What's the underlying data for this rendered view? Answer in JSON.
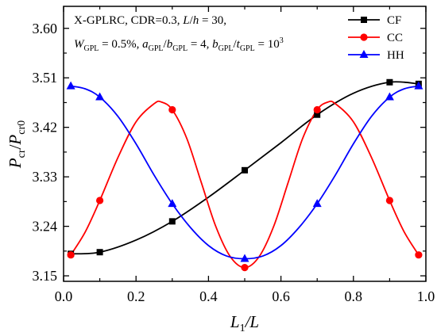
{
  "chart_data": {
    "type": "line",
    "xlabel": {
      "main": "L",
      "sub": "1",
      "rest": "/L"
    },
    "ylabel": {
      "p1": "P",
      "s1": "cr",
      "slash": "/",
      "p2": "P",
      "s2": "cr0"
    },
    "xlim": [
      0.0,
      1.0
    ],
    "ylim": [
      3.14,
      3.64
    ],
    "xticks": [
      "0.0",
      "0.2",
      "0.4",
      "0.6",
      "0.8",
      "1.0"
    ],
    "xtick_values": [
      0.0,
      0.2,
      0.4,
      0.6,
      0.8,
      1.0
    ],
    "yticks": [
      "3.15",
      "3.24",
      "3.33",
      "3.42",
      "3.51",
      "3.60"
    ],
    "ytick_values": [
      3.15,
      3.24,
      3.33,
      3.42,
      3.51,
      3.6
    ],
    "annotation": {
      "line1": {
        "a": "X-GPLRC, CDR=0.3, ",
        "b": "L",
        "c": "/",
        "d": "h",
        "e": " = 30,"
      },
      "line2": {
        "w": "W",
        "wsub": "GPL",
        "wval": " = 0.5%, ",
        "a": "a",
        "asub": "GPL",
        "slash1": "/",
        "b": "b",
        "bsub": "GPL",
        "aval": " = 4, ",
        "b2": "b",
        "b2sub": "GPL",
        "slash2": "/",
        "t": "t",
        "tsub": "GPL",
        "tval": " = 10",
        "tsup": "3"
      }
    },
    "legend_position": "top-right",
    "series": [
      {
        "name": "CF",
        "color": "#000000",
        "marker": "square",
        "points": [
          [
            0.02,
            3.19
          ],
          [
            0.1,
            3.193
          ],
          [
            0.3,
            3.249
          ],
          [
            0.5,
            3.342
          ],
          [
            0.7,
            3.443
          ],
          [
            0.9,
            3.502
          ],
          [
            0.98,
            3.499
          ]
        ],
        "curve": [
          [
            0.02,
            3.19
          ],
          [
            0.1,
            3.193
          ],
          [
            0.2,
            3.215
          ],
          [
            0.3,
            3.249
          ],
          [
            0.4,
            3.293
          ],
          [
            0.5,
            3.342
          ],
          [
            0.6,
            3.392
          ],
          [
            0.7,
            3.443
          ],
          [
            0.8,
            3.482
          ],
          [
            0.9,
            3.502
          ],
          [
            0.98,
            3.499
          ]
        ]
      },
      {
        "name": "CC",
        "color": "#ff0000",
        "marker": "circle",
        "points": [
          [
            0.02,
            3.188
          ],
          [
            0.1,
            3.287
          ],
          [
            0.3,
            3.452
          ],
          [
            0.5,
            3.165
          ],
          [
            0.7,
            3.452
          ],
          [
            0.9,
            3.287
          ],
          [
            0.98,
            3.188
          ]
        ],
        "curve": [
          [
            0.02,
            3.188
          ],
          [
            0.06,
            3.23
          ],
          [
            0.1,
            3.287
          ],
          [
            0.15,
            3.365
          ],
          [
            0.2,
            3.43
          ],
          [
            0.25,
            3.463
          ],
          [
            0.27,
            3.466
          ],
          [
            0.3,
            3.452
          ],
          [
            0.34,
            3.4
          ],
          [
            0.38,
            3.32
          ],
          [
            0.42,
            3.24
          ],
          [
            0.46,
            3.185
          ],
          [
            0.5,
            3.165
          ],
          [
            0.54,
            3.185
          ],
          [
            0.58,
            3.24
          ],
          [
            0.62,
            3.32
          ],
          [
            0.66,
            3.4
          ],
          [
            0.7,
            3.452
          ],
          [
            0.73,
            3.466
          ],
          [
            0.75,
            3.463
          ],
          [
            0.8,
            3.43
          ],
          [
            0.85,
            3.365
          ],
          [
            0.9,
            3.287
          ],
          [
            0.94,
            3.23
          ],
          [
            0.98,
            3.188
          ]
        ]
      },
      {
        "name": "HH",
        "color": "#0000ff",
        "marker": "triangle",
        "points": [
          [
            0.02,
            3.495
          ],
          [
            0.1,
            3.475
          ],
          [
            0.3,
            3.281
          ],
          [
            0.5,
            3.181
          ],
          [
            0.7,
            3.281
          ],
          [
            0.9,
            3.475
          ],
          [
            0.98,
            3.495
          ]
        ],
        "curve": [
          [
            0.02,
            3.495
          ],
          [
            0.06,
            3.49
          ],
          [
            0.1,
            3.475
          ],
          [
            0.15,
            3.44
          ],
          [
            0.2,
            3.39
          ],
          [
            0.25,
            3.333
          ],
          [
            0.3,
            3.281
          ],
          [
            0.35,
            3.238
          ],
          [
            0.4,
            3.205
          ],
          [
            0.45,
            3.186
          ],
          [
            0.5,
            3.181
          ],
          [
            0.55,
            3.186
          ],
          [
            0.6,
            3.205
          ],
          [
            0.65,
            3.238
          ],
          [
            0.7,
            3.281
          ],
          [
            0.75,
            3.333
          ],
          [
            0.8,
            3.39
          ],
          [
            0.85,
            3.44
          ],
          [
            0.9,
            3.475
          ],
          [
            0.94,
            3.49
          ],
          [
            0.98,
            3.495
          ]
        ]
      }
    ]
  }
}
